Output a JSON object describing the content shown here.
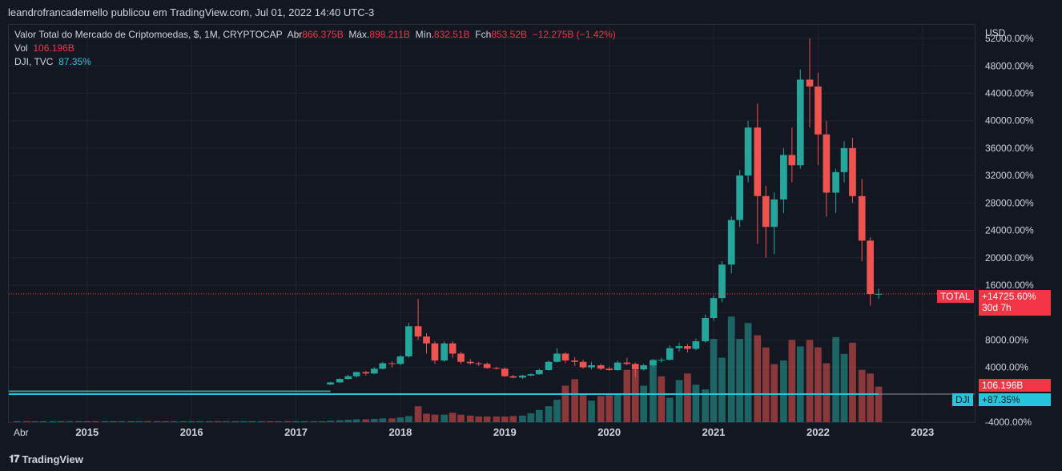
{
  "header": {
    "publisher_text": "leandrofrancademello publicou em TradingView.com, Jul 01, 2022 14:40 UTC-3"
  },
  "legend": {
    "symbol_line": "Valor Total do Mercado de Criptomoedas, $, 1M, CRYPTOCAP",
    "open_label": "Abr",
    "open_value": "866.375B",
    "high_label": "Máx.",
    "high_value": "898.211B",
    "low_label": "Mín.",
    "low_value": "832.51B",
    "close_label": "Fch",
    "close_value": "853.52B",
    "change_value": "−12.275B (−1.42%)",
    "vol_label": "Vol",
    "vol_value": "106.196B",
    "dji_label": "DJI, TVC",
    "dji_value": "87.35%"
  },
  "axis": {
    "currency": "USD",
    "x_start_label": "Abr"
  },
  "tags": {
    "total_label": "TOTAL",
    "total_value": "+14725.60%",
    "total_countdown": "30d 7h",
    "vol_tag": "106.196B",
    "dji_label": "DJI",
    "dji_value": "+87.35%"
  },
  "footer": {
    "brand": "TradingView"
  },
  "colors": {
    "up": "#26a69a",
    "down": "#ef5350",
    "dji_line": "#26c6da",
    "background": "#131722"
  },
  "chart_data": {
    "type": "candlestick",
    "y_unit": "%",
    "ylim": [
      -4000,
      54000
    ],
    "y_ticks": [
      "-4000.00%",
      "4000.00%",
      "8000.00%",
      "12000.00%",
      "16000.00%",
      "20000.00%",
      "24000.00%",
      "28000.00%",
      "32000.00%",
      "36000.00%",
      "40000.00%",
      "44000.00%",
      "48000.00%",
      "52000.00%"
    ],
    "x_ticks": [
      "2015",
      "2016",
      "2017",
      "2018",
      "2019",
      "2020",
      "2021",
      "2022",
      "2023"
    ],
    "x_ticks_pos": [
      2015,
      2016,
      2017,
      2018,
      2019,
      2020,
      2021,
      2022,
      2023
    ],
    "x_start": 2014.25,
    "x_end": 2023.5,
    "last_value": 14725.6,
    "candles": [
      {
        "t": 2017.33,
        "o": 1500,
        "h": 1900,
        "l": 1400,
        "c": 1800
      },
      {
        "t": 2017.42,
        "o": 1800,
        "h": 2400,
        "l": 1700,
        "c": 2300
      },
      {
        "t": 2017.5,
        "o": 2300,
        "h": 2900,
        "l": 2200,
        "c": 2700
      },
      {
        "t": 2017.58,
        "o": 2700,
        "h": 3400,
        "l": 2500,
        "c": 3300
      },
      {
        "t": 2017.67,
        "o": 3300,
        "h": 3500,
        "l": 2800,
        "c": 3100
      },
      {
        "t": 2017.75,
        "o": 3100,
        "h": 4000,
        "l": 3000,
        "c": 3800
      },
      {
        "t": 2017.83,
        "o": 3800,
        "h": 4800,
        "l": 3700,
        "c": 4600
      },
      {
        "t": 2017.92,
        "o": 4600,
        "h": 4900,
        "l": 4000,
        "c": 4500
      },
      {
        "t": 2018.0,
        "o": 4500,
        "h": 5800,
        "l": 4300,
        "c": 5600
      },
      {
        "t": 2018.08,
        "o": 5600,
        "h": 10500,
        "l": 5400,
        "c": 10000
      },
      {
        "t": 2018.17,
        "o": 10000,
        "h": 14000,
        "l": 8000,
        "c": 8500
      },
      {
        "t": 2018.25,
        "o": 8500,
        "h": 9000,
        "l": 6000,
        "c": 7500
      },
      {
        "t": 2018.33,
        "o": 7500,
        "h": 7800,
        "l": 4500,
        "c": 5000
      },
      {
        "t": 2018.42,
        "o": 5000,
        "h": 7800,
        "l": 4800,
        "c": 7500
      },
      {
        "t": 2018.5,
        "o": 7500,
        "h": 7800,
        "l": 5400,
        "c": 6000
      },
      {
        "t": 2018.58,
        "o": 6000,
        "h": 6300,
        "l": 4500,
        "c": 4800
      },
      {
        "t": 2018.67,
        "o": 4800,
        "h": 5200,
        "l": 4400,
        "c": 4600
      },
      {
        "t": 2018.75,
        "o": 4600,
        "h": 4800,
        "l": 4200,
        "c": 4500
      },
      {
        "t": 2018.83,
        "o": 4500,
        "h": 4700,
        "l": 3800,
        "c": 3900
      },
      {
        "t": 2018.92,
        "o": 3900,
        "h": 4100,
        "l": 3700,
        "c": 3800
      },
      {
        "t": 2019.0,
        "o": 3800,
        "h": 4000,
        "l": 2600,
        "c": 2700
      },
      {
        "t": 2019.08,
        "o": 2700,
        "h": 2900,
        "l": 2400,
        "c": 2500
      },
      {
        "t": 2019.17,
        "o": 2500,
        "h": 2900,
        "l": 2300,
        "c": 2800
      },
      {
        "t": 2019.25,
        "o": 2800,
        "h": 3100,
        "l": 2700,
        "c": 3000
      },
      {
        "t": 2019.33,
        "o": 3000,
        "h": 3800,
        "l": 2900,
        "c": 3600
      },
      {
        "t": 2019.42,
        "o": 3600,
        "h": 5000,
        "l": 3500,
        "c": 4800
      },
      {
        "t": 2019.5,
        "o": 4800,
        "h": 6800,
        "l": 4700,
        "c": 6000
      },
      {
        "t": 2019.58,
        "o": 6000,
        "h": 6200,
        "l": 4600,
        "c": 5000
      },
      {
        "t": 2019.67,
        "o": 5000,
        "h": 5500,
        "l": 4200,
        "c": 4800
      },
      {
        "t": 2019.75,
        "o": 4800,
        "h": 5100,
        "l": 3800,
        "c": 4000
      },
      {
        "t": 2019.83,
        "o": 4000,
        "h": 4800,
        "l": 3700,
        "c": 4300
      },
      {
        "t": 2019.92,
        "o": 4300,
        "h": 4500,
        "l": 3600,
        "c": 3800
      },
      {
        "t": 2020.0,
        "o": 3800,
        "h": 4100,
        "l": 3500,
        "c": 3600
      },
      {
        "t": 2020.08,
        "o": 3600,
        "h": 5000,
        "l": 3500,
        "c": 4700
      },
      {
        "t": 2020.17,
        "o": 4700,
        "h": 5400,
        "l": 4300,
        "c": 4500
      },
      {
        "t": 2020.25,
        "o": 4500,
        "h": 4700,
        "l": 2600,
        "c": 3700
      },
      {
        "t": 2020.33,
        "o": 3700,
        "h": 4500,
        "l": 3500,
        "c": 4300
      },
      {
        "t": 2020.42,
        "o": 4300,
        "h": 5200,
        "l": 4100,
        "c": 5000
      },
      {
        "t": 2020.5,
        "o": 5000,
        "h": 5400,
        "l": 4700,
        "c": 5100
      },
      {
        "t": 2020.58,
        "o": 5100,
        "h": 7200,
        "l": 5000,
        "c": 6800
      },
      {
        "t": 2020.67,
        "o": 6800,
        "h": 7600,
        "l": 6300,
        "c": 7100
      },
      {
        "t": 2020.75,
        "o": 7100,
        "h": 7400,
        "l": 6200,
        "c": 6700
      },
      {
        "t": 2020.83,
        "o": 6700,
        "h": 8200,
        "l": 6500,
        "c": 7800
      },
      {
        "t": 2020.92,
        "o": 7800,
        "h": 11700,
        "l": 7600,
        "c": 11200
      },
      {
        "t": 2021.0,
        "o": 11200,
        "h": 14500,
        "l": 10800,
        "c": 14100
      },
      {
        "t": 2021.08,
        "o": 14100,
        "h": 19500,
        "l": 13500,
        "c": 19000
      },
      {
        "t": 2021.17,
        "o": 19000,
        "h": 26000,
        "l": 17700,
        "c": 25500
      },
      {
        "t": 2021.25,
        "o": 25500,
        "h": 32800,
        "l": 24500,
        "c": 32000
      },
      {
        "t": 2021.33,
        "o": 32000,
        "h": 40000,
        "l": 31000,
        "c": 39000
      },
      {
        "t": 2021.42,
        "o": 39000,
        "h": 42500,
        "l": 22000,
        "c": 29000
      },
      {
        "t": 2021.5,
        "o": 29000,
        "h": 30500,
        "l": 20000,
        "c": 24500
      },
      {
        "t": 2021.58,
        "o": 24500,
        "h": 29500,
        "l": 20500,
        "c": 28500
      },
      {
        "t": 2021.67,
        "o": 28500,
        "h": 36000,
        "l": 26500,
        "c": 35000
      },
      {
        "t": 2021.75,
        "o": 35000,
        "h": 39000,
        "l": 31000,
        "c": 33500
      },
      {
        "t": 2021.83,
        "o": 33500,
        "h": 47500,
        "l": 33000,
        "c": 46000
      },
      {
        "t": 2021.92,
        "o": 46000,
        "h": 52000,
        "l": 39000,
        "c": 45000
      },
      {
        "t": 2022.0,
        "o": 45000,
        "h": 47000,
        "l": 33500,
        "c": 38000
      },
      {
        "t": 2022.08,
        "o": 38000,
        "h": 40000,
        "l": 26000,
        "c": 29500
      },
      {
        "t": 2022.17,
        "o": 29500,
        "h": 33000,
        "l": 26500,
        "c": 32500
      },
      {
        "t": 2022.25,
        "o": 32500,
        "h": 37000,
        "l": 31000,
        "c": 36000
      },
      {
        "t": 2022.33,
        "o": 36000,
        "h": 37500,
        "l": 28000,
        "c": 29000
      },
      {
        "t": 2022.42,
        "o": 29000,
        "h": 31500,
        "l": 19500,
        "c": 22500
      },
      {
        "t": 2022.5,
        "o": 22500,
        "h": 23000,
        "l": 13000,
        "c": 14700
      },
      {
        "t": 2022.58,
        "o": 14700,
        "h": 15500,
        "l": 14000,
        "c": 14725
      }
    ],
    "volumes": [
      {
        "t": 2014.33,
        "v": 2,
        "up": true
      },
      {
        "t": 2014.42,
        "v": 2,
        "up": false
      },
      {
        "t": 2014.5,
        "v": 2,
        "up": true
      },
      {
        "t": 2014.58,
        "v": 2,
        "up": false
      },
      {
        "t": 2014.67,
        "v": 2,
        "up": true
      },
      {
        "t": 2014.75,
        "v": 2,
        "up": false
      },
      {
        "t": 2014.83,
        "v": 2,
        "up": true
      },
      {
        "t": 2014.92,
        "v": 2,
        "up": false
      },
      {
        "t": 2015.0,
        "v": 2,
        "up": true
      },
      {
        "t": 2015.08,
        "v": 2,
        "up": false
      },
      {
        "t": 2015.17,
        "v": 2,
        "up": true
      },
      {
        "t": 2015.25,
        "v": 2,
        "up": false
      },
      {
        "t": 2015.33,
        "v": 2,
        "up": true
      },
      {
        "t": 2015.42,
        "v": 2,
        "up": false
      },
      {
        "t": 2015.5,
        "v": 2,
        "up": true
      },
      {
        "t": 2015.58,
        "v": 2,
        "up": false
      },
      {
        "t": 2015.67,
        "v": 2,
        "up": true
      },
      {
        "t": 2015.75,
        "v": 2,
        "up": false
      },
      {
        "t": 2015.83,
        "v": 2,
        "up": true
      },
      {
        "t": 2015.92,
        "v": 2,
        "up": false
      },
      {
        "t": 2016.0,
        "v": 2,
        "up": true
      },
      {
        "t": 2016.08,
        "v": 2,
        "up": false
      },
      {
        "t": 2016.17,
        "v": 2,
        "up": true
      },
      {
        "t": 2016.25,
        "v": 2,
        "up": false
      },
      {
        "t": 2016.33,
        "v": 2,
        "up": true
      },
      {
        "t": 2016.42,
        "v": 2,
        "up": false
      },
      {
        "t": 2016.5,
        "v": 2,
        "up": true
      },
      {
        "t": 2016.58,
        "v": 2,
        "up": false
      },
      {
        "t": 2016.67,
        "v": 2,
        "up": true
      },
      {
        "t": 2016.75,
        "v": 2,
        "up": false
      },
      {
        "t": 2016.83,
        "v": 2,
        "up": true
      },
      {
        "t": 2016.92,
        "v": 2,
        "up": false
      },
      {
        "t": 2017.0,
        "v": 2,
        "up": true
      },
      {
        "t": 2017.08,
        "v": 2,
        "up": false
      },
      {
        "t": 2017.17,
        "v": 2,
        "up": true
      },
      {
        "t": 2017.25,
        "v": 2,
        "up": false
      },
      {
        "t": 2017.33,
        "v": 3,
        "up": true
      },
      {
        "t": 2017.42,
        "v": 4,
        "up": true
      },
      {
        "t": 2017.5,
        "v": 5,
        "up": true
      },
      {
        "t": 2017.58,
        "v": 6,
        "up": true
      },
      {
        "t": 2017.67,
        "v": 6,
        "up": false
      },
      {
        "t": 2017.75,
        "v": 7,
        "up": true
      },
      {
        "t": 2017.83,
        "v": 8,
        "up": true
      },
      {
        "t": 2017.92,
        "v": 8,
        "up": false
      },
      {
        "t": 2018.0,
        "v": 10,
        "up": true
      },
      {
        "t": 2018.08,
        "v": 13,
        "up": true
      },
      {
        "t": 2018.17,
        "v": 34,
        "up": false
      },
      {
        "t": 2018.25,
        "v": 18,
        "up": false
      },
      {
        "t": 2018.33,
        "v": 16,
        "up": false
      },
      {
        "t": 2018.42,
        "v": 16,
        "up": true
      },
      {
        "t": 2018.5,
        "v": 20,
        "up": false
      },
      {
        "t": 2018.58,
        "v": 16,
        "up": false
      },
      {
        "t": 2018.67,
        "v": 14,
        "up": false
      },
      {
        "t": 2018.75,
        "v": 12,
        "up": false
      },
      {
        "t": 2018.83,
        "v": 12,
        "up": false
      },
      {
        "t": 2018.92,
        "v": 12,
        "up": false
      },
      {
        "t": 2019.0,
        "v": 12,
        "up": false
      },
      {
        "t": 2019.08,
        "v": 13,
        "up": false
      },
      {
        "t": 2019.17,
        "v": 14,
        "up": true
      },
      {
        "t": 2019.25,
        "v": 19,
        "up": true
      },
      {
        "t": 2019.33,
        "v": 26,
        "up": true
      },
      {
        "t": 2019.42,
        "v": 34,
        "up": true
      },
      {
        "t": 2019.5,
        "v": 48,
        "up": true
      },
      {
        "t": 2019.58,
        "v": 78,
        "up": false
      },
      {
        "t": 2019.67,
        "v": 92,
        "up": false
      },
      {
        "t": 2019.75,
        "v": 60,
        "up": false
      },
      {
        "t": 2019.83,
        "v": 46,
        "up": true
      },
      {
        "t": 2019.92,
        "v": 56,
        "up": false
      },
      {
        "t": 2020.0,
        "v": 58,
        "up": false
      },
      {
        "t": 2020.08,
        "v": 58,
        "up": true
      },
      {
        "t": 2020.17,
        "v": 112,
        "up": false
      },
      {
        "t": 2020.25,
        "v": 112,
        "up": false
      },
      {
        "t": 2020.33,
        "v": 78,
        "up": true
      },
      {
        "t": 2020.42,
        "v": 134,
        "up": true
      },
      {
        "t": 2020.5,
        "v": 98,
        "up": false
      },
      {
        "t": 2020.58,
        "v": 52,
        "up": true
      },
      {
        "t": 2020.67,
        "v": 90,
        "up": true
      },
      {
        "t": 2020.75,
        "v": 104,
        "up": false
      },
      {
        "t": 2020.83,
        "v": 80,
        "up": true
      },
      {
        "t": 2020.92,
        "v": 70,
        "up": true
      },
      {
        "t": 2021.0,
        "v": 178,
        "up": true
      },
      {
        "t": 2021.08,
        "v": 138,
        "up": true
      },
      {
        "t": 2021.17,
        "v": 226,
        "up": true
      },
      {
        "t": 2021.25,
        "v": 178,
        "up": true
      },
      {
        "t": 2021.33,
        "v": 212,
        "up": true
      },
      {
        "t": 2021.42,
        "v": 186,
        "up": false
      },
      {
        "t": 2021.5,
        "v": 160,
        "up": false
      },
      {
        "t": 2021.58,
        "v": 124,
        "up": false
      },
      {
        "t": 2021.67,
        "v": 132,
        "up": true
      },
      {
        "t": 2021.75,
        "v": 176,
        "up": false
      },
      {
        "t": 2021.83,
        "v": 162,
        "up": true
      },
      {
        "t": 2021.92,
        "v": 176,
        "up": false
      },
      {
        "t": 2022.0,
        "v": 160,
        "up": false
      },
      {
        "t": 2022.08,
        "v": 126,
        "up": false
      },
      {
        "t": 2022.17,
        "v": 182,
        "up": true
      },
      {
        "t": 2022.25,
        "v": 146,
        "up": true
      },
      {
        "t": 2022.33,
        "v": 170,
        "up": false
      },
      {
        "t": 2022.42,
        "v": 112,
        "up": false
      },
      {
        "t": 2022.5,
        "v": 104,
        "up": false
      },
      {
        "t": 2022.58,
        "v": 76,
        "up": false
      }
    ]
  }
}
